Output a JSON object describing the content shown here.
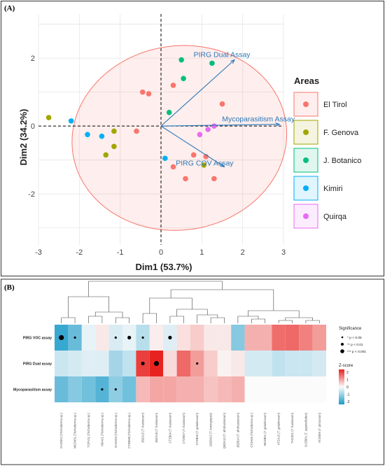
{
  "panel_a_label": "(A)",
  "panel_b_label": "(B)",
  "chart_data": [
    {
      "type": "scatter",
      "title": "",
      "xlabel": "Dim1 (53.7%)",
      "ylabel": "Dim2 (34.2%)",
      "xlim": [
        -3,
        3
      ],
      "ylim": [
        -3.5,
        3.3
      ],
      "xticks": [
        "-3",
        "-2",
        "-1",
        "0",
        "1",
        "2",
        "3"
      ],
      "yticks": [
        "-2",
        "0",
        "2"
      ],
      "grid": true,
      "legend_title": "Areas",
      "legend_position": "right",
      "series": [
        {
          "name": "El Tirol",
          "color": "#f8766d",
          "points": [
            [
              -0.6,
              -0.15
            ],
            [
              -0.45,
              1.0
            ],
            [
              -0.3,
              0.95
            ],
            [
              0.3,
              1.2
            ],
            [
              1.5,
              0.65
            ],
            [
              0.3,
              -1.2
            ],
            [
              0.8,
              -0.85
            ],
            [
              0.6,
              -1.55
            ],
            [
              1.3,
              -1.55
            ],
            [
              1.1,
              -0.9
            ]
          ]
        },
        {
          "name": "F. Genova",
          "color": "#a3a500",
          "points": [
            [
              -2.75,
              0.25
            ],
            [
              -1.15,
              -0.15
            ],
            [
              -1.15,
              -0.6
            ],
            [
              -1.35,
              -0.85
            ],
            [
              1.05,
              -1.15
            ]
          ]
        },
        {
          "name": "J. Botanico",
          "color": "#00bf7d",
          "points": [
            [
              0.5,
              1.95
            ],
            [
              0.55,
              1.4
            ],
            [
              1.25,
              1.85
            ],
            [
              0.2,
              0.4
            ]
          ]
        },
        {
          "name": "Kimiri",
          "color": "#00b0f6",
          "points": [
            [
              -2.2,
              0.15
            ],
            [
              -1.8,
              -0.25
            ],
            [
              -1.45,
              -0.3
            ],
            [
              0.1,
              -0.95
            ]
          ]
        },
        {
          "name": "Quirqa",
          "color": "#e76bf3",
          "points": [
            [
              0.95,
              -0.25
            ],
            [
              1.15,
              -0.1
            ],
            [
              1.3,
              0.0
            ]
          ]
        }
      ],
      "arrows": [
        {
          "label": "PIRG Dual Assay",
          "x": 1.8,
          "y": 1.95
        },
        {
          "label": "Mycoparasitism Assay",
          "x": 2.9,
          "y": 0.05
        },
        {
          "label": "PIRG COV Assay",
          "x": 1.55,
          "y": -1.2
        }
      ]
    },
    {
      "type": "heatmap",
      "rows": [
        "PIRG VOC assay",
        "PIRG Dual assay",
        "Mycoparasitism assay"
      ],
      "columns": [
        "GVZM42 (Trichoderma sp.)",
        "MKZM31 (Trichoderma sp.)",
        "TCPV11 (Trichoderma sp.)",
        "MKA01 (Trichoderma sp.)",
        "GVZA53 (Trichoderma sp.)",
        "CTZBM8 (Trichoderma sp.)",
        "JBZA15 (T. harzianum)",
        "JBZA18 (T. harzianum)",
        "CTZB04 (T. harzianum)",
        "CTZM07 (T. harzianum)",
        "CTZB05 (T. gelatinosum)",
        "GBZM13 (T. koningiopsis)",
        "QBZA13 (T. afroharzianum)",
        "JBZB14 (T. afroharzianum)",
        "CTZA06 (Trichoderma sp.)",
        "MKZB01 (T. gelatinosum)",
        "ATZA15 (T. gelatinosum)",
        "THCZ01 (T. harzianum)",
        "GVZB01 (T. asperelloides)",
        "ATZM09 (T. pirroonum)"
      ],
      "values": [
        [
          -2.0,
          -1.5,
          -0.2,
          0.2,
          -0.35,
          -0.2,
          -0.7,
          0.15,
          -0.3,
          0.3,
          0.5,
          0.2,
          0.2,
          -1.2,
          0.8,
          0.8,
          1.5,
          1.55,
          1.3,
          1.0
        ],
        [
          -0.5,
          -0.4,
          -0.3,
          -0.3,
          -0.9,
          -0.6,
          2.0,
          2.3,
          0.35,
          1.55,
          1.0,
          0.5,
          0.1,
          0.2,
          -0.4,
          -0.4,
          -0.6,
          -0.5,
          -0.5,
          -0.4
        ],
        [
          -1.5,
          -1.2,
          -1.4,
          -1.7,
          -1.1,
          -1.4,
          0.7,
          0.9,
          0.9,
          0.8,
          0.8,
          0.6,
          0.7,
          0.8,
          0.0,
          0.0,
          0.0,
          0.0,
          0.0,
          0.0
        ]
      ],
      "significance": [
        [
          3,
          1,
          0,
          0,
          1,
          2,
          1,
          0,
          2,
          0,
          0,
          0,
          0,
          0,
          0,
          0,
          0,
          0,
          0,
          0
        ],
        [
          0,
          0,
          0,
          0,
          0,
          0,
          2,
          3,
          0,
          0,
          1,
          0,
          0,
          0,
          0,
          0,
          0,
          0,
          0,
          0
        ],
        [
          0,
          0,
          0,
          1,
          1,
          0,
          0,
          0,
          0,
          0,
          0,
          0,
          0,
          0,
          0,
          0,
          0,
          0,
          0,
          0
        ]
      ],
      "significance_legend_title": "Significance",
      "significance_labels": [
        "* p < 0.05",
        "** p < 0.01",
        "*** p < 0.001"
      ],
      "colorbar_title": "Z-score",
      "colorbar_ticks": [
        "2",
        "1",
        "0",
        "-1",
        "-2"
      ]
    }
  ]
}
